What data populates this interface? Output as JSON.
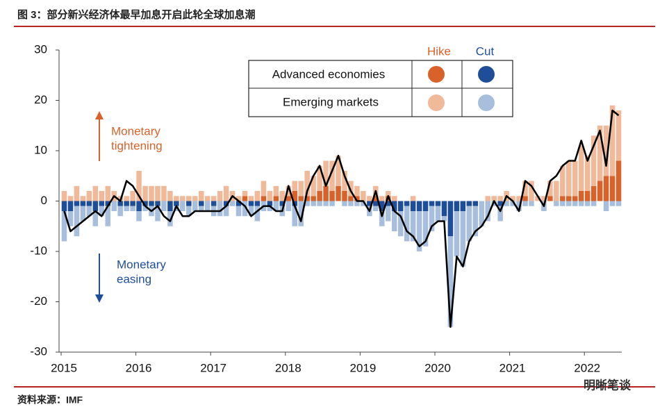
{
  "title": "图 3：部分新兴经济体最早加息开启此轮全球加息潮",
  "source": "资料来源：IMF",
  "watermark": "明晰笔谈",
  "chart_data": {
    "type": "bar",
    "stacked": true,
    "annotations": {
      "tightening": [
        "Monetary",
        "tightening"
      ],
      "easing": [
        "Monetary",
        "easing"
      ]
    },
    "legend": {
      "columns": [
        "Hike",
        "Cut"
      ],
      "rows": [
        "Advanced economies",
        "Emerging markets"
      ]
    },
    "categories": [
      "2015",
      null,
      null,
      null,
      null,
      null,
      null,
      null,
      null,
      null,
      null,
      null,
      "2016",
      null,
      null,
      null,
      null,
      null,
      null,
      null,
      null,
      null,
      null,
      null,
      "2017",
      null,
      null,
      null,
      null,
      null,
      null,
      null,
      null,
      null,
      null,
      null,
      "2018",
      null,
      null,
      null,
      null,
      null,
      null,
      null,
      null,
      null,
      null,
      null,
      "2019",
      null,
      null,
      null,
      null,
      null,
      null,
      null,
      null,
      null,
      null,
      null,
      "2020",
      null,
      null,
      null,
      null,
      null,
      null,
      null,
      null,
      null,
      null,
      null,
      "2021",
      null,
      null,
      null,
      null,
      null,
      null,
      null,
      null,
      null,
      null,
      null,
      "2022",
      null,
      null,
      null,
      null,
      null
    ],
    "ylim": [
      -30,
      30
    ],
    "yticks": [
      -30,
      -20,
      -10,
      0,
      10,
      20,
      30
    ],
    "series": [
      {
        "color": "#d9622b",
        "values": [
          0,
          0,
          0,
          0,
          0,
          0,
          0,
          0,
          0,
          0,
          0,
          0,
          0,
          0,
          0,
          0,
          0,
          0,
          0,
          0,
          0,
          0,
          0,
          0,
          0,
          0,
          0,
          0,
          0,
          1,
          0,
          0,
          1,
          0,
          1,
          0,
          1,
          2,
          1,
          1,
          1,
          2,
          3,
          2,
          3,
          2,
          1,
          1,
          0,
          0,
          1,
          0,
          1,
          0,
          0,
          0,
          0,
          0,
          0,
          0,
          0,
          0,
          0,
          0,
          0,
          0,
          0,
          0,
          0,
          0,
          0,
          0,
          0,
          0,
          1,
          0,
          0,
          0,
          1,
          0,
          1,
          1,
          1,
          2,
          2,
          3,
          4,
          5,
          5,
          8
        ]
      },
      {
        "color": "#f0b99a",
        "values": [
          2,
          1,
          3,
          1,
          2,
          3,
          2,
          3,
          2,
          1,
          1,
          2,
          6,
          3,
          3,
          3,
          3,
          2,
          1,
          1,
          1,
          1,
          2,
          1,
          1,
          2,
          3,
          2,
          1,
          1,
          1,
          2,
          3,
          2,
          2,
          2,
          2,
          2,
          3,
          5,
          4,
          5,
          5,
          6,
          6,
          4,
          3,
          2,
          2,
          1,
          2,
          1,
          1,
          1,
          0,
          0,
          1,
          0,
          0,
          0,
          0,
          0,
          0,
          0,
          0,
          0,
          0,
          0,
          1,
          1,
          1,
          2,
          1,
          1,
          3,
          4,
          1,
          1,
          3,
          4,
          6,
          7,
          7,
          9,
          7,
          10,
          11,
          10,
          14,
          10
        ]
      },
      {
        "color": "#1f4e99",
        "values": [
          -2,
          -2,
          -1,
          -1,
          -1,
          -2,
          -1,
          -1,
          0,
          -1,
          -1,
          -1,
          -2,
          -1,
          -1,
          -1,
          0,
          -2,
          -1,
          0,
          -1,
          0,
          -1,
          0,
          -1,
          0,
          -1,
          0,
          -1,
          0,
          -1,
          -1,
          0,
          -1,
          0,
          -1,
          0,
          -1,
          0,
          0,
          0,
          0,
          0,
          0,
          0,
          0,
          0,
          0,
          0,
          -1,
          -1,
          -2,
          -1,
          -2,
          -2,
          -1,
          -2,
          -2,
          -2,
          -1,
          -1,
          -3,
          -7,
          -2,
          -2,
          -1,
          -1,
          0,
          0,
          0,
          -1,
          0,
          0,
          0,
          0,
          0,
          0,
          0,
          0,
          0,
          0,
          0,
          0,
          0,
          0,
          0,
          0,
          0,
          0,
          0
        ]
      },
      {
        "color": "#a7bfdc",
        "values": [
          -6,
          -3,
          -6,
          -3,
          -2,
          -3,
          -2,
          -4,
          -2,
          -2,
          -1,
          -1,
          -2,
          -1,
          -2,
          -3,
          -2,
          -3,
          -1,
          -2,
          -2,
          -2,
          -1,
          -2,
          -2,
          -3,
          -2,
          -1,
          -2,
          -3,
          -2,
          -3,
          -2,
          -1,
          -2,
          -2,
          -2,
          -4,
          -5,
          -1,
          -1,
          -1,
          -1,
          -1,
          0,
          -1,
          -1,
          -1,
          -1,
          -2,
          -1,
          -3,
          -3,
          -4,
          -5,
          -7,
          -6,
          -8,
          -7,
          -5,
          -3,
          -1,
          -18,
          -9,
          -11,
          -7,
          -6,
          -5,
          -4,
          -1,
          -3,
          -1,
          -1,
          -2,
          -1,
          -1,
          0,
          -2,
          0,
          -1,
          -1,
          -1,
          -1,
          -1,
          -1,
          -1,
          0,
          -2,
          -1,
          -1
        ]
      }
    ],
    "net": {
      "color": "#000000",
      "values": [
        -2,
        -6,
        -5,
        -4,
        -3,
        -2,
        -3,
        -1,
        1,
        0,
        4,
        3,
        1,
        -1,
        -2,
        -1,
        -3,
        -4,
        -1,
        -3,
        -3,
        -2,
        -2,
        -2,
        -2,
        -2,
        -1,
        1,
        0,
        -1,
        -3,
        -2,
        -1,
        -1,
        -2,
        -2,
        3,
        -1,
        -4,
        2,
        5,
        7,
        3,
        6,
        9,
        5,
        2,
        0,
        0,
        -2,
        2,
        -3,
        1,
        -2,
        -3,
        -6,
        -7,
        -9,
        -8,
        -5,
        -4,
        -4,
        -25,
        -11,
        -13,
        -8,
        -6,
        -5,
        -3,
        0,
        -2,
        1,
        0,
        -2,
        4,
        3,
        1,
        -1,
        4,
        5,
        7,
        8,
        8,
        12,
        8,
        11,
        14,
        7,
        18,
        17
      ]
    }
  }
}
